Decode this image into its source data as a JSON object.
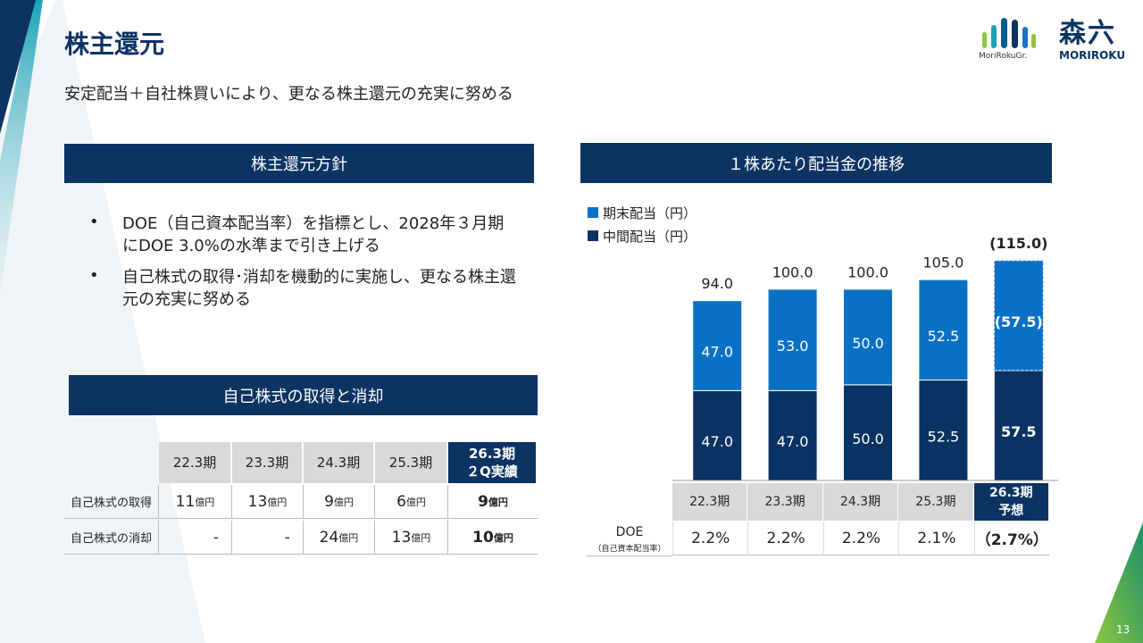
{
  "header": {
    "title": "株主還元",
    "subtitle": "安定配当＋自社株買いにより、更なる株主還元の充実に努める",
    "logo_group": "MoriRokuGr.",
    "logo_main": "森六",
    "logo_sub": "MORIROKU"
  },
  "policy": {
    "heading": "株主還元方針",
    "bullets": [
      "DOE（自己資本配当率）を指標とし、2028年３月期にDOE 3.0%の水準まで引き上げる",
      "自己株式の取得･消却を機動的に実施し、更なる株主還元の充実に努める"
    ]
  },
  "buyback": {
    "heading": "自己株式の取得と消却",
    "columns": [
      "22.3期",
      "23.3期",
      "24.3期",
      "25.3期",
      "26.3期\n２Q実績"
    ],
    "rows": [
      {
        "label": "自己株式の取得",
        "cells": [
          {
            "value": "11",
            "unit": "億円"
          },
          {
            "value": "13",
            "unit": "億円"
          },
          {
            "value": "9",
            "unit": "億円"
          },
          {
            "value": "6",
            "unit": "億円"
          },
          {
            "value": "9",
            "unit": "億円"
          }
        ]
      },
      {
        "label": "自己株式の消却",
        "cells": [
          {
            "value": "-"
          },
          {
            "value": "-"
          },
          {
            "value": "24",
            "unit": "億円"
          },
          {
            "value": "13",
            "unit": "億円"
          },
          {
            "value": "10",
            "unit": "億円"
          }
        ]
      }
    ]
  },
  "chart_data": {
    "type": "stacked_bar",
    "title": "１株あたり配当金の推移",
    "categories": [
      "22.3期",
      "23.3期",
      "24.3期",
      "25.3期",
      "26.3期\n予想"
    ],
    "series": [
      {
        "name": "中間配当（円）",
        "color": "#0a3263",
        "values": [
          47.0,
          47.0,
          50.0,
          52.5,
          57.5
        ],
        "value_labels": [
          "47.0",
          "47.0",
          "50.0",
          "52.5",
          "57.5"
        ]
      },
      {
        "name": "期末配当（円）",
        "color": "#0a70c6",
        "values": [
          47.0,
          53.0,
          50.0,
          52.5,
          57.5
        ],
        "value_labels": [
          "47.0",
          "53.0",
          "50.0",
          "52.5",
          "(57.5)"
        ]
      }
    ],
    "totals": {
      "values": [
        94.0,
        100.0,
        100.0,
        105.0,
        115.0
      ],
      "value_labels": [
        "94.0",
        "100.0",
        "100.0",
        "105.0",
        "(115.0)"
      ]
    },
    "ylim": [
      0,
      120
    ]
  },
  "doe": {
    "label": "DOE",
    "sublabel": "（自己資本配当率）",
    "values": [
      "2.2%",
      "2.2%",
      "2.2%",
      "2.1%",
      "（2.7%）"
    ]
  },
  "page_number": "13"
}
